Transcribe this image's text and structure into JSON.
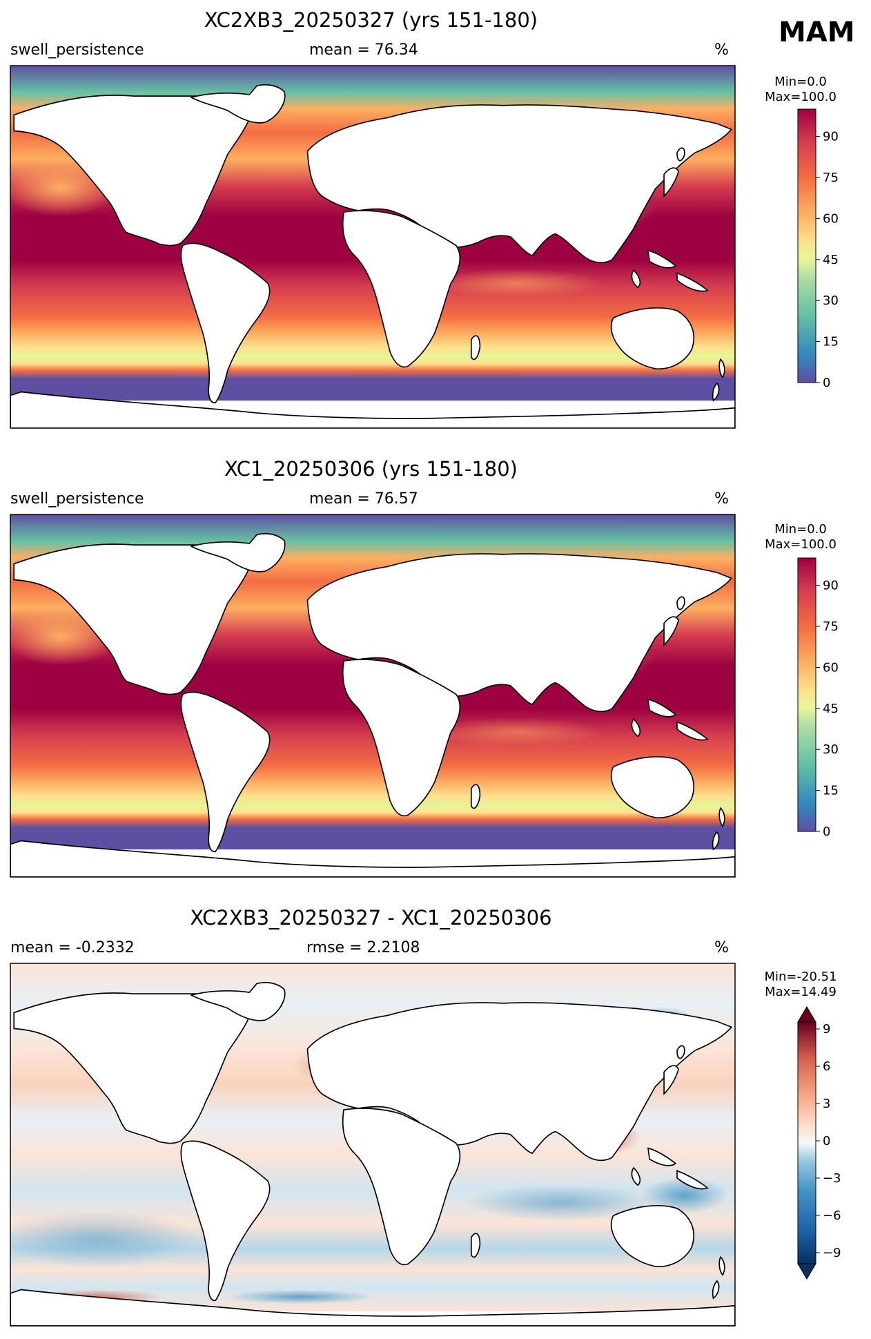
{
  "season": "MAM",
  "panels": [
    {
      "title": "XC2XB3_20250327 (yrs 151-180)",
      "left_label": "swell_persistence",
      "center_label": "mean = 76.34",
      "units": "%",
      "colorbar": {
        "min_max": [
          "Min=0.0",
          "Max=100.0"
        ],
        "ticks": [
          "0",
          "15",
          "30",
          "45",
          "60",
          "75",
          "90"
        ],
        "colors": [
          "#5e4fa2",
          "#3a7eb8",
          "#3288bd",
          "#4ba4b1",
          "#66c2a5",
          "#94d4a4",
          "#abdda4",
          "#d3ed9c",
          "#e6f598",
          "#f7fbaf",
          "#fee08b",
          "#fdc272",
          "#fdae61",
          "#f88d52",
          "#f46d43",
          "#e55749",
          "#d53e4f",
          "#b9204a",
          "#9e0142"
        ]
      }
    },
    {
      "title": "XC1_20250306 (yrs 151-180)",
      "left_label": "swell_persistence",
      "center_label": "mean = 76.57",
      "units": "%",
      "colorbar": {
        "min_max": [
          "Min=0.0",
          "Max=100.0"
        ],
        "ticks": [
          "0",
          "15",
          "30",
          "45",
          "60",
          "75",
          "90"
        ],
        "colors": [
          "#5e4fa2",
          "#3a7eb8",
          "#3288bd",
          "#4ba4b1",
          "#66c2a5",
          "#94d4a4",
          "#abdda4",
          "#d3ed9c",
          "#e6f598",
          "#f7fbaf",
          "#fee08b",
          "#fdc272",
          "#fdae61",
          "#f88d52",
          "#f46d43",
          "#e55749",
          "#d53e4f",
          "#b9204a",
          "#9e0142"
        ]
      }
    },
    {
      "title": "XC2XB3_20250327 - XC1_20250306",
      "left_label": "mean = -0.2332",
      "center_label": "rmse = 2.2108",
      "units": "%",
      "colorbar": {
        "min_max": [
          "Min=-20.51",
          "Max=14.49"
        ],
        "ticks": [
          "−9",
          "−6",
          "−3",
          "0",
          "3",
          "6",
          "9"
        ],
        "colors": [
          "#053061",
          "#15457c",
          "#2166ac",
          "#3a83bf",
          "#4393c3",
          "#6eaed2",
          "#92c5de",
          "#b6d7e8",
          "#d1e5f0",
          "#e8f0f5",
          "#f7f7f7",
          "#fbe4d7",
          "#fddbc7",
          "#f9bfa4",
          "#f4a582",
          "#e58368",
          "#d6604d",
          "#c13e3e",
          "#b2182b",
          "#8a0e25",
          "#67001f"
        ]
      }
    }
  ],
  "colors": {
    "ocean_low": "#5e4fa2",
    "ocean_high": "#9e0142",
    "land": "#ffffff",
    "diff_neutral": "#f7f7f7"
  }
}
